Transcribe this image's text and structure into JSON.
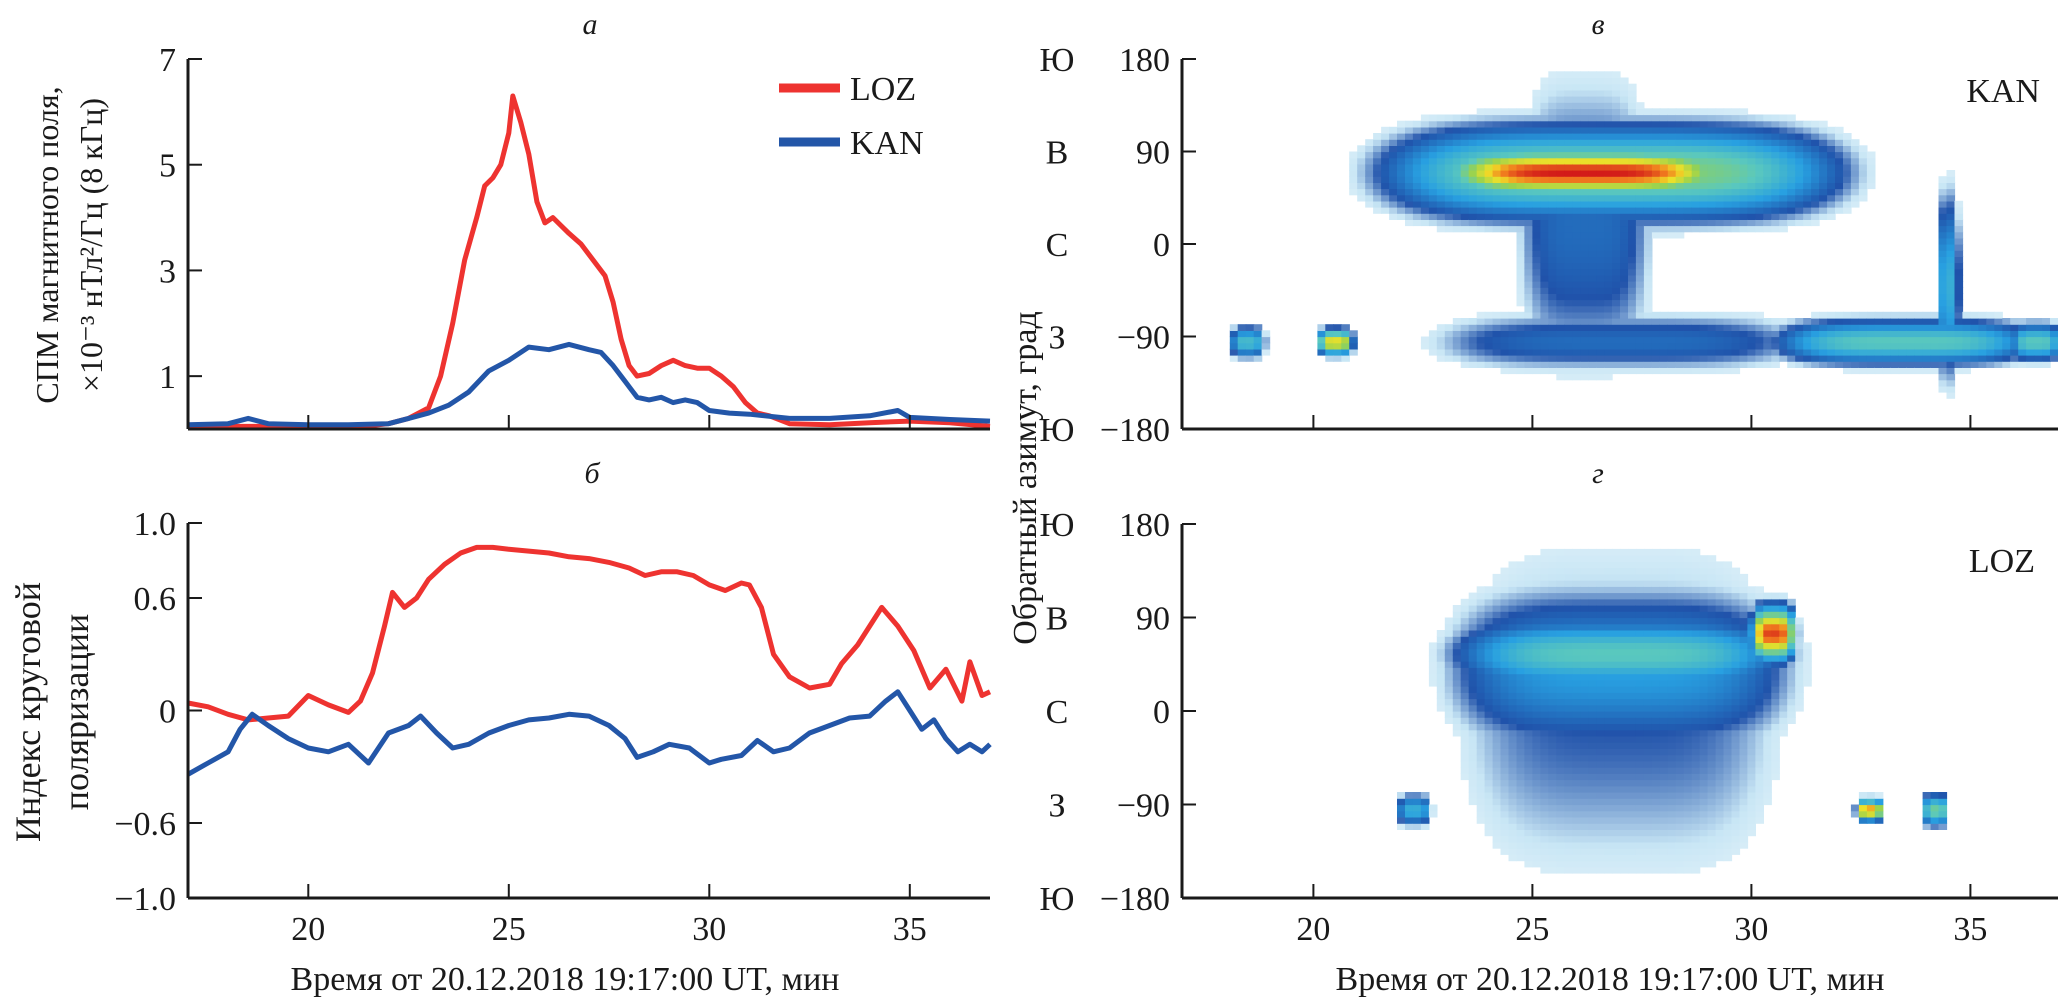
{
  "chart_data": [
    {
      "id": "a",
      "panel_label": "а",
      "type": "line",
      "title": "",
      "xlabel": "",
      "ylabel_line1": "СПМ магнитного поля,",
      "ylabel_line2": "×10⁻³ нТл²/Гц (8 кГц)",
      "xlim": [
        17,
        37
      ],
      "ylim": [
        0,
        7
      ],
      "xticks": [
        20,
        25,
        30,
        35
      ],
      "yticks": [
        1,
        3,
        5,
        7
      ],
      "ytick_labels": [
        "1",
        "3",
        "5",
        "7"
      ],
      "show_xtick_labels": false,
      "legend": {
        "placement": "top-right",
        "entries": [
          "LOZ",
          "KAN"
        ]
      },
      "series": [
        {
          "name": "LOZ",
          "color": "#ee3330",
          "x": [
            17,
            18,
            19,
            20,
            21,
            21.5,
            22,
            22.5,
            23,
            23.3,
            23.6,
            23.9,
            24.2,
            24.4,
            24.6,
            24.8,
            25.0,
            25.1,
            25.3,
            25.5,
            25.7,
            25.9,
            26.1,
            26.3,
            26.5,
            26.8,
            27.1,
            27.4,
            27.6,
            27.8,
            28.0,
            28.2,
            28.5,
            28.8,
            29.1,
            29.4,
            29.7,
            30.0,
            30.3,
            30.6,
            30.9,
            31.2,
            31.5,
            32,
            33,
            34,
            35,
            36,
            37
          ],
          "y": [
            0.05,
            0.05,
            0.05,
            0.05,
            0.05,
            0.06,
            0.1,
            0.2,
            0.4,
            1.0,
            2.0,
            3.2,
            4.0,
            4.6,
            4.75,
            5.0,
            5.6,
            6.3,
            5.8,
            5.2,
            4.3,
            3.9,
            4.0,
            3.85,
            3.7,
            3.5,
            3.2,
            2.9,
            2.4,
            1.7,
            1.2,
            1.0,
            1.05,
            1.2,
            1.3,
            1.2,
            1.15,
            1.15,
            1.0,
            0.8,
            0.5,
            0.3,
            0.25,
            0.1,
            0.08,
            0.12,
            0.15,
            0.12,
            0.05
          ]
        },
        {
          "name": "KAN",
          "color": "#2356a8",
          "x": [
            17,
            18,
            18.5,
            19,
            20,
            21,
            22,
            22.5,
            23,
            23.5,
            24,
            24.5,
            25,
            25.5,
            26,
            26.5,
            27,
            27.3,
            27.6,
            27.9,
            28.2,
            28.5,
            28.8,
            29.1,
            29.4,
            29.7,
            30,
            30.5,
            31,
            32,
            33,
            34,
            34.7,
            35,
            36,
            37
          ],
          "y": [
            0.08,
            0.1,
            0.2,
            0.1,
            0.08,
            0.08,
            0.1,
            0.2,
            0.3,
            0.45,
            0.7,
            1.1,
            1.3,
            1.55,
            1.5,
            1.6,
            1.5,
            1.45,
            1.2,
            0.9,
            0.6,
            0.55,
            0.6,
            0.5,
            0.55,
            0.5,
            0.35,
            0.3,
            0.28,
            0.2,
            0.2,
            0.25,
            0.35,
            0.22,
            0.18,
            0.15
          ]
        }
      ]
    },
    {
      "id": "b",
      "panel_label": "б",
      "type": "line",
      "xlabel": "Время от 20.12.2018 19:17:00 UT, мин",
      "ylabel_line1": "Индекс круговой",
      "ylabel_line2": "поляризации",
      "xlim": [
        17,
        37
      ],
      "ylim": [
        -1.0,
        1.0
      ],
      "xticks": [
        20,
        25,
        30,
        35
      ],
      "xtick_labels": [
        "20",
        "25",
        "30",
        "35"
      ],
      "yticks": [
        -1.0,
        -0.6,
        0,
        0.6,
        1.0
      ],
      "ytick_labels": [
        "−1.0",
        "−0.6",
        "0",
        "0.6",
        "1.0"
      ],
      "series": [
        {
          "name": "LOZ",
          "color": "#ee3330",
          "x": [
            17,
            17.5,
            18,
            18.5,
            19,
            19.5,
            20,
            20.5,
            21,
            21.3,
            21.6,
            21.9,
            22.1,
            22.4,
            22.7,
            23.0,
            23.4,
            23.8,
            24.2,
            24.6,
            25,
            25.5,
            26,
            26.5,
            27,
            27.5,
            28,
            28.4,
            28.8,
            29.2,
            29.6,
            30,
            30.4,
            30.8,
            31.0,
            31.3,
            31.6,
            32,
            32.5,
            33,
            33.3,
            33.7,
            34.0,
            34.3,
            34.7,
            35.1,
            35.5,
            35.9,
            36.3,
            36.5,
            36.8,
            37
          ],
          "y": [
            0.04,
            0.02,
            -0.02,
            -0.05,
            -0.04,
            -0.03,
            0.08,
            0.03,
            -0.01,
            0.05,
            0.2,
            0.45,
            0.63,
            0.55,
            0.6,
            0.7,
            0.78,
            0.84,
            0.87,
            0.87,
            0.86,
            0.85,
            0.84,
            0.82,
            0.81,
            0.79,
            0.76,
            0.72,
            0.74,
            0.74,
            0.72,
            0.67,
            0.64,
            0.68,
            0.67,
            0.55,
            0.3,
            0.18,
            0.12,
            0.14,
            0.25,
            0.35,
            0.45,
            0.55,
            0.45,
            0.32,
            0.12,
            0.22,
            0.05,
            0.26,
            0.08,
            0.1
          ]
        },
        {
          "name": "KAN",
          "color": "#2356a8",
          "x": [
            17,
            17.5,
            18,
            18.3,
            18.6,
            19,
            19.5,
            20,
            20.5,
            21,
            21.5,
            22,
            22.5,
            22.8,
            23.2,
            23.6,
            24,
            24.5,
            25,
            25.5,
            26,
            26.5,
            27,
            27.5,
            27.9,
            28.2,
            28.6,
            29,
            29.5,
            30,
            30.3,
            30.8,
            31.2,
            31.6,
            32,
            32.5,
            33,
            33.5,
            34,
            34.4,
            34.7,
            35,
            35.3,
            35.6,
            35.9,
            36.2,
            36.5,
            36.8,
            37
          ],
          "y": [
            -0.34,
            -0.28,
            -0.22,
            -0.1,
            -0.02,
            -0.08,
            -0.15,
            -0.2,
            -0.22,
            -0.18,
            -0.28,
            -0.12,
            -0.08,
            -0.03,
            -0.12,
            -0.2,
            -0.18,
            -0.12,
            -0.08,
            -0.05,
            -0.04,
            -0.02,
            -0.03,
            -0.08,
            -0.15,
            -0.25,
            -0.22,
            -0.18,
            -0.2,
            -0.28,
            -0.26,
            -0.24,
            -0.16,
            -0.22,
            -0.2,
            -0.12,
            -0.08,
            -0.04,
            -0.03,
            0.05,
            0.1,
            0.0,
            -0.1,
            -0.05,
            -0.15,
            -0.22,
            -0.18,
            -0.22,
            -0.18
          ]
        }
      ]
    },
    {
      "id": "v",
      "panel_label": "в",
      "type": "heatmap",
      "station_label": "KAN",
      "xlim": [
        17,
        37
      ],
      "ylim": [
        -180,
        180
      ],
      "xticks": [
        20,
        25,
        30,
        35
      ],
      "show_xtick_labels": false,
      "yticks": [
        -180,
        -90,
        0,
        90,
        180
      ],
      "ytick_labels": [
        "−180",
        "−90",
        "0",
        "90",
        "180"
      ],
      "ytick_dirs": [
        "Ю",
        "З",
        "С",
        "В",
        "Ю"
      ],
      "blobs": [
        {
          "t": 26.2,
          "az": 70,
          "dt": 3.2,
          "daz": 22,
          "level": 1.0
        },
        {
          "t": 26.8,
          "az": 70,
          "dt": 5.2,
          "daz": 45,
          "level": 0.55
        },
        {
          "t": 26.2,
          "az": 20,
          "dt": 1.6,
          "daz": 150,
          "level": 0.2
        },
        {
          "t": 27.0,
          "az": -95,
          "dt": 4.5,
          "daz": 30,
          "level": 0.2
        },
        {
          "t": 33.5,
          "az": -95,
          "dt": 3.0,
          "daz": 22,
          "level": 0.45
        },
        {
          "t": 34.5,
          "az": -40,
          "dt": 0.25,
          "daz": 90,
          "level": 0.35
        },
        {
          "t": 20.5,
          "az": -95,
          "dt": 0.4,
          "daz": 12,
          "level": 0.75
        },
        {
          "t": 18.5,
          "az": -95,
          "dt": 0.4,
          "daz": 15,
          "level": 0.4
        },
        {
          "t": 36.5,
          "az": -95,
          "dt": 0.6,
          "daz": 18,
          "level": 0.45
        }
      ]
    },
    {
      "id": "g",
      "panel_label": "г",
      "type": "heatmap",
      "station_label": "LOZ",
      "xlabel": "Время от 20.12.2018 19:17:00 UT, мин",
      "ylabel": "Обратный азимут, град",
      "xlim": [
        17,
        37
      ],
      "ylim": [
        -180,
        180
      ],
      "xticks": [
        20,
        25,
        30,
        35
      ],
      "xtick_labels": [
        "20",
        "25",
        "30",
        "35"
      ],
      "yticks": [
        -180,
        -90,
        0,
        90,
        180
      ],
      "ytick_labels": [
        "−180",
        "−90",
        "0",
        "90",
        "180"
      ],
      "ytick_dirs": [
        "Ю",
        "З",
        "С",
        "В",
        "Ю"
      ],
      "blobs": [
        {
          "t": 27.0,
          "az": 0,
          "dt": 4.0,
          "daz": 180,
          "level": 0.15
        },
        {
          "t": 27.0,
          "az": 40,
          "dt": 4.0,
          "daz": 80,
          "level": 0.3
        },
        {
          "t": 27.0,
          "az": 55,
          "dt": 3.8,
          "daz": 35,
          "level": 0.45
        },
        {
          "t": 30.5,
          "az": 75,
          "dt": 0.5,
          "daz": 25,
          "level": 0.95
        },
        {
          "t": 34.2,
          "az": -95,
          "dt": 0.3,
          "daz": 15,
          "level": 0.5
        },
        {
          "t": 32.7,
          "az": -95,
          "dt": 0.3,
          "daz": 10,
          "level": 0.85
        },
        {
          "t": 22.3,
          "az": -95,
          "dt": 0.4,
          "daz": 15,
          "level": 0.35
        }
      ]
    }
  ]
}
